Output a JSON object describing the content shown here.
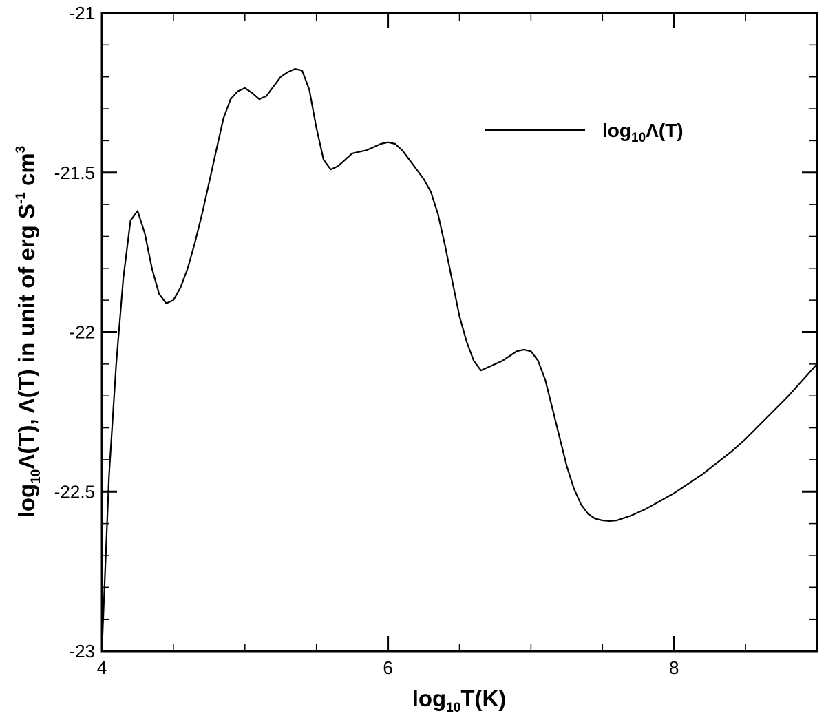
{
  "chart_data": {
    "type": "line",
    "xlabel": {
      "pre": "log",
      "sub": "10",
      "post": "T(K)"
    },
    "ylabel": {
      "pre": "log",
      "sub": "10",
      "mid": "Λ(T), Λ(T) in unit of erg S",
      "sup1": "-1",
      "mid2": " cm",
      "sup2": "3"
    },
    "xlim": [
      4,
      9
    ],
    "ylim": [
      -23,
      -21
    ],
    "xticks": [
      {
        "value": 4,
        "label": "4"
      },
      {
        "value": 6,
        "label": "6"
      },
      {
        "value": 8,
        "label": "8"
      }
    ],
    "xminor": [
      4.5,
      5,
      5.5,
      6.5,
      7,
      7.5,
      8.5
    ],
    "yticks": [
      {
        "value": -23,
        "label": "-23"
      },
      {
        "value": -22.5,
        "label": "-22.5"
      },
      {
        "value": -22,
        "label": "-22"
      },
      {
        "value": -21.5,
        "label": "-21.5"
      },
      {
        "value": -21,
        "label": "-21"
      }
    ],
    "yminor": [
      -22.9,
      -22.8,
      -22.7,
      -22.6,
      -22.4,
      -22.3,
      -22.2,
      -22.1,
      -21.9,
      -21.8,
      -21.7,
      -21.6,
      -21.4,
      -21.3,
      -21.2,
      -21.1
    ],
    "grid": false,
    "legend_position": "top-right",
    "series": [
      {
        "name": {
          "pre": "log",
          "sub": "10",
          "post": "Λ(T)"
        },
        "color": "#000000",
        "x": [
          4.0,
          4.05,
          4.1,
          4.15,
          4.2,
          4.25,
          4.3,
          4.35,
          4.4,
          4.45,
          4.5,
          4.55,
          4.6,
          4.65,
          4.7,
          4.75,
          4.8,
          4.85,
          4.9,
          4.95,
          5.0,
          5.05,
          5.1,
          5.15,
          5.2,
          5.25,
          5.3,
          5.35,
          5.4,
          5.45,
          5.5,
          5.55,
          5.6,
          5.65,
          5.7,
          5.75,
          5.8,
          5.85,
          5.9,
          5.95,
          6.0,
          6.05,
          6.1,
          6.15,
          6.2,
          6.25,
          6.3,
          6.35,
          6.4,
          6.45,
          6.5,
          6.55,
          6.6,
          6.65,
          6.7,
          6.75,
          6.8,
          6.85,
          6.9,
          6.95,
          7.0,
          7.05,
          7.1,
          7.15,
          7.2,
          7.25,
          7.3,
          7.35,
          7.4,
          7.45,
          7.5,
          7.55,
          7.6,
          7.7,
          7.8,
          7.9,
          8.0,
          8.1,
          8.2,
          8.3,
          8.4,
          8.5,
          8.6,
          8.7,
          8.8,
          8.9,
          9.0
        ],
        "values": [
          -23.0,
          -22.45,
          -22.1,
          -21.83,
          -21.65,
          -21.62,
          -21.69,
          -21.8,
          -21.88,
          -21.91,
          -21.9,
          -21.86,
          -21.8,
          -21.72,
          -21.63,
          -21.53,
          -21.43,
          -21.33,
          -21.27,
          -21.245,
          -21.235,
          -21.25,
          -21.27,
          -21.26,
          -21.23,
          -21.2,
          -21.185,
          -21.175,
          -21.18,
          -21.24,
          -21.36,
          -21.46,
          -21.49,
          -21.48,
          -21.46,
          -21.44,
          -21.435,
          -21.43,
          -21.42,
          -21.41,
          -21.405,
          -21.41,
          -21.43,
          -21.46,
          -21.49,
          -21.52,
          -21.56,
          -21.63,
          -21.73,
          -21.84,
          -21.95,
          -22.03,
          -22.09,
          -22.12,
          -22.11,
          -22.1,
          -22.09,
          -22.075,
          -22.06,
          -22.055,
          -22.06,
          -22.09,
          -22.15,
          -22.24,
          -22.33,
          -22.42,
          -22.49,
          -22.54,
          -22.57,
          -22.585,
          -22.59,
          -22.592,
          -22.59,
          -22.575,
          -22.555,
          -22.53,
          -22.505,
          -22.475,
          -22.445,
          -22.41,
          -22.375,
          -22.335,
          -22.29,
          -22.245,
          -22.2,
          -22.15,
          -22.1
        ]
      }
    ]
  }
}
